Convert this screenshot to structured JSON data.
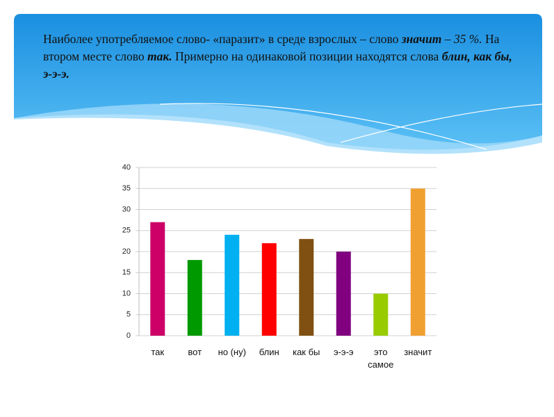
{
  "slide": {
    "text": [
      "Наиболее употребляемое слово- «паразит» в среде взрослых – слово ",
      "значит",
      " – 35 %.",
      " На втором месте слово ",
      "так.",
      " Примерно на одинаковой позиции находятся слова ",
      "блин, как бы, э-э-э."
    ]
  },
  "chart_data": {
    "type": "bar",
    "categories": [
      "так",
      "вот",
      "но (ну)",
      "блин",
      "как бы",
      "э-э-э",
      "это самое",
      "значит"
    ],
    "values": [
      27,
      18,
      24,
      22,
      23,
      20,
      10,
      35
    ],
    "colors": [
      "#cc0066",
      "#009900",
      "#00b0f0",
      "#ff0000",
      "#7f5011",
      "#800080",
      "#99cc00",
      "#f0a030"
    ],
    "ylim": [
      0,
      40
    ],
    "yticks": [
      0,
      5,
      10,
      15,
      20,
      25,
      30,
      35,
      40
    ],
    "grid": true
  }
}
